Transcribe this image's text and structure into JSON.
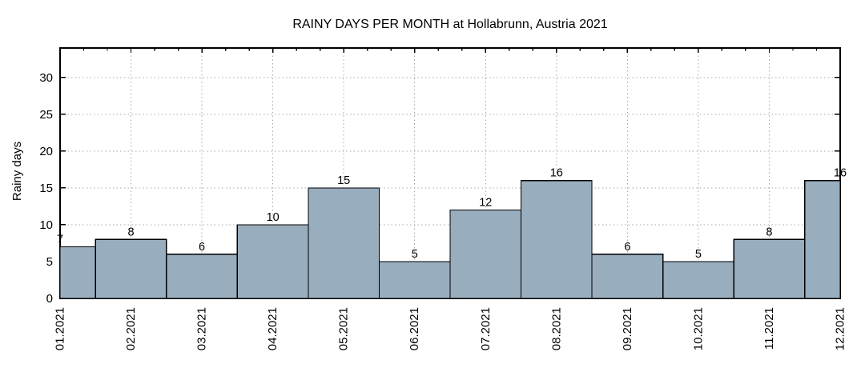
{
  "chart_data": {
    "type": "bar",
    "title": "RAINY DAYS PER MONTH at Hollabrunn, Austria 2021",
    "xlabel": "",
    "ylabel": "Rainy days",
    "categories": [
      "01.2021",
      "02.2021",
      "03.2021",
      "04.2021",
      "05.2021",
      "06.2021",
      "07.2021",
      "08.2021",
      "09.2021",
      "10.2021",
      "11.2021",
      "12.2021"
    ],
    "values": [
      7,
      8,
      6,
      10,
      15,
      5,
      12,
      16,
      6,
      5,
      8,
      16
    ],
    "yticks": [
      0,
      5,
      10,
      15,
      20,
      25,
      30
    ],
    "ylim": [
      0,
      34
    ],
    "grid": true,
    "legend": false,
    "value_labels_shown": true,
    "x_tick_label_rotation_degrees": 90,
    "colors": {
      "bar_fill": "#98ADBE",
      "bar_stroke": "#000000",
      "grid": "#A8A8A8",
      "frame": "#000000",
      "text": "#000000",
      "background": "#FFFFFF"
    }
  }
}
